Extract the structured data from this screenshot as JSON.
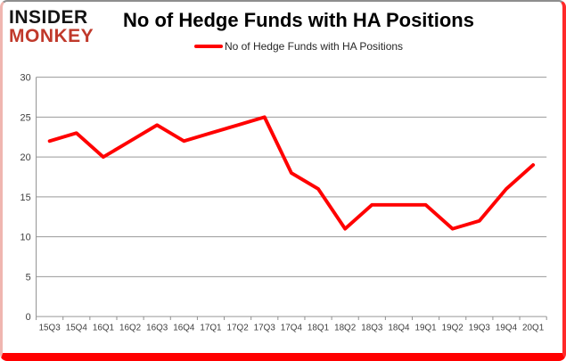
{
  "brand": {
    "line1": "INSIDER",
    "line2": "MONKEY"
  },
  "title": "No of Hedge Funds with HA Positions",
  "legend": {
    "label": "No of Hedge Funds with HA Positions"
  },
  "colors": {
    "series": "#ff0000",
    "brand_primary": "#141414",
    "brand_accent": "#c0392b",
    "grid": "#999999",
    "axis_line": "#8e8e8e",
    "axis_text": "#3d3d3d",
    "frame_border": "#ff0000",
    "frame_top_border": "#8e8e8e",
    "background": "#ffffff"
  },
  "chart_data": {
    "type": "line",
    "title": "No of Hedge Funds with HA Positions",
    "categories": [
      "15Q3",
      "15Q4",
      "16Q1",
      "16Q2",
      "16Q3",
      "16Q4",
      "17Q1",
      "17Q2",
      "17Q3",
      "17Q4",
      "18Q1",
      "18Q2",
      "18Q3",
      "18Q4",
      "19Q1",
      "19Q2",
      "19Q3",
      "19Q4",
      "20Q1"
    ],
    "series": [
      {
        "name": "No of Hedge Funds with HA Positions",
        "color": "#ff0000",
        "values": [
          22,
          23,
          20,
          22,
          24,
          22,
          23,
          24,
          25,
          18,
          16,
          11,
          14,
          14,
          14,
          11,
          12,
          16,
          19
        ]
      }
    ],
    "xlabel": "",
    "ylabel": "",
    "ylim": [
      0,
      30
    ],
    "ytick_interval": 5,
    "grid": true,
    "legend_position": "top-center"
  }
}
